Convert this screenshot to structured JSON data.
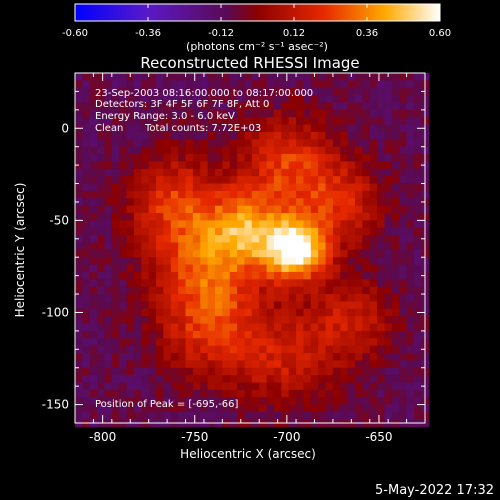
{
  "colorbar": {
    "ticks": [
      "-0.60",
      "-0.36",
      "-0.12",
      "0.12",
      "0.36",
      "0.60"
    ],
    "min": -0.6,
    "max": 0.6,
    "unit_label": "(photons cm⁻² s⁻¹ asec⁻²)"
  },
  "title": "Reconstructed RHESSI Image",
  "info": {
    "line1": "23-Sep-2003 08:16:00.000 to 08:17:00.000",
    "line2": "Detectors: 3F 4F 5F 6F 7F 8F, Att 0",
    "line3": "Energy Range: 3.0 - 6.0 keV",
    "line4_left": "Clean",
    "line4_right": "Total counts: 7.72E+03"
  },
  "peak_label": "Position of Peak = [-695,-66]",
  "footer_date": "5-May-2022 17:32",
  "colors": {
    "background": "#000000",
    "axis": "#ffffff"
  },
  "chart_data": {
    "type": "heatmap",
    "title": "Reconstructed RHESSI Image",
    "xlabel": "Heliocentric X (arcsec)",
    "ylabel": "Heliocentric Y (arcsec)",
    "xlim": [
      -815,
      -625
    ],
    "ylim": [
      -160,
      30
    ],
    "xticks": [
      -800,
      -750,
      -700,
      -650
    ],
    "yticks": [
      0,
      -50,
      -100,
      -150
    ],
    "xtick_labels": [
      "-800",
      "-750",
      "-700",
      "-650"
    ],
    "ytick_labels": [
      "0",
      "-50",
      "-100",
      "-150"
    ],
    "colormap": "rhessi-hot (blue-purple-red-orange-yellow-white)",
    "zlim": [
      -0.6,
      0.6
    ],
    "peak": {
      "x": -695,
      "y": -66,
      "value": 0.6
    },
    "grid_step_arcsec": 4,
    "blobs": [
      {
        "x": -695,
        "y": -66,
        "value": 0.6,
        "sigma": 12
      },
      {
        "x": -722,
        "y": -55,
        "value": 0.3,
        "sigma": 14
      },
      {
        "x": -745,
        "y": -75,
        "value": 0.22,
        "sigma": 20
      },
      {
        "x": -760,
        "y": -40,
        "value": 0.2,
        "sigma": 18
      },
      {
        "x": -700,
        "y": -20,
        "value": 0.22,
        "sigma": 18
      },
      {
        "x": -740,
        "y": -110,
        "value": 0.18,
        "sigma": 20
      },
      {
        "x": -670,
        "y": -40,
        "value": 0.16,
        "sigma": 16
      },
      {
        "x": -665,
        "y": -105,
        "value": 0.14,
        "sigma": 16
      },
      {
        "x": -700,
        "y": -125,
        "value": 0.12,
        "sigma": 18
      }
    ],
    "background_value": -0.1
  }
}
